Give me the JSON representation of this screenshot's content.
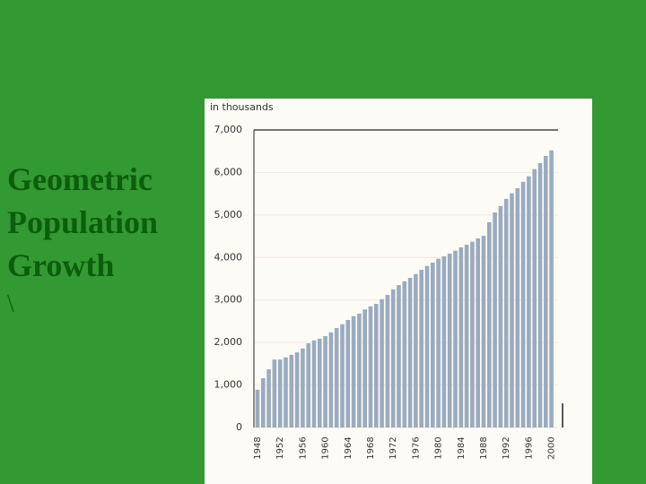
{
  "slide": {
    "title_lines": [
      "Geometric",
      "Population",
      "Growth"
    ],
    "note": "\\"
  },
  "chart_data": {
    "type": "bar",
    "y_axis_label": "in thousands",
    "categories": [
      "1948",
      null,
      null,
      null,
      "1952",
      null,
      null,
      null,
      "1956",
      null,
      null,
      null,
      "1960",
      null,
      null,
      null,
      "1964",
      null,
      null,
      null,
      "1968",
      null,
      null,
      null,
      "1972",
      null,
      null,
      null,
      "1976",
      null,
      null,
      null,
      "1980",
      null,
      null,
      null,
      "1984",
      null,
      null,
      null,
      "1988",
      null,
      null,
      null,
      "1992",
      null,
      null,
      null,
      "1996",
      null,
      null,
      null,
      "2000"
    ],
    "values": [
      890,
      1160,
      1370,
      1600,
      1600,
      1650,
      1710,
      1770,
      1860,
      1980,
      2050,
      2090,
      2150,
      2240,
      2340,
      2430,
      2530,
      2620,
      2680,
      2780,
      2850,
      2910,
      3020,
      3120,
      3250,
      3350,
      3440,
      3520,
      3610,
      3710,
      3800,
      3880,
      3970,
      4030,
      4090,
      4160,
      4240,
      4300,
      4370,
      4450,
      4510,
      4830,
      5060,
      5210,
      5380,
      5510,
      5630,
      5780,
      5910,
      6080,
      6220,
      6390,
      6520
    ],
    "color": "#9aabbf",
    "ylim": [
      0,
      7000
    ],
    "yticks": [
      0,
      {
        "value": 1000,
        "label": "1,000"
      },
      {
        "value": 2000,
        "label": "2,000"
      },
      {
        "value": 3000,
        "label": "3,000"
      },
      {
        "value": 4000,
        "label": "4,000"
      },
      {
        "value": 5000,
        "label": "5,000"
      },
      {
        "value": 6000,
        "label": "6,000"
      },
      {
        "value": 7000,
        "label": "7,000"
      }
    ],
    "grid": true
  }
}
